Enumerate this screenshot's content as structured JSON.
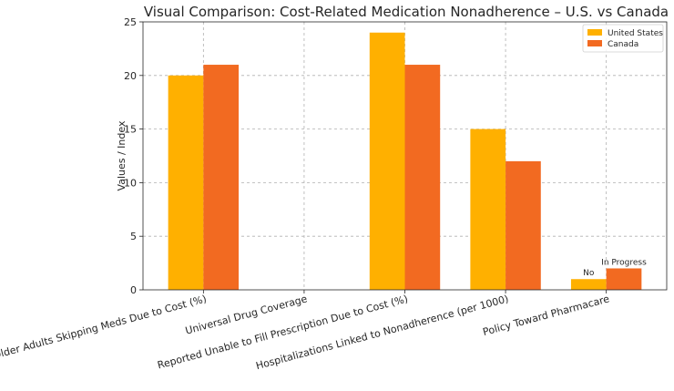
{
  "chart_data": {
    "type": "bar",
    "title": "Visual Comparison: Cost-Related Medication Nonadherence – U.S. vs Canada",
    "xlabel": "",
    "ylabel": "Values / Index",
    "ylim": [
      0,
      25
    ],
    "yticks": [
      "0",
      "5",
      "10",
      "15",
      "20",
      "25"
    ],
    "grid": true,
    "legend_position": "top-right",
    "categories": [
      "Older Adults Skipping Meds Due to Cost (%)",
      "Universal Drug Coverage",
      "Reported Unable to Fill Prescription Due to Cost (%)",
      "Hospitalizations Linked to Nonadherence (per 1000)",
      "Policy Toward Pharmacare"
    ],
    "series": [
      {
        "name": "United States",
        "color": "#FFB000",
        "values": [
          20,
          0,
          24,
          15,
          1
        ]
      },
      {
        "name": "Canada",
        "color": "#F26A21",
        "values": [
          21,
          0,
          21,
          12,
          2
        ]
      }
    ],
    "annotations": [
      {
        "text": "No",
        "category_index": 4,
        "series_index": 0,
        "value": 1
      },
      {
        "text": "In Progress",
        "category_index": 4,
        "series_index": 1,
        "value": 2
      }
    ]
  }
}
